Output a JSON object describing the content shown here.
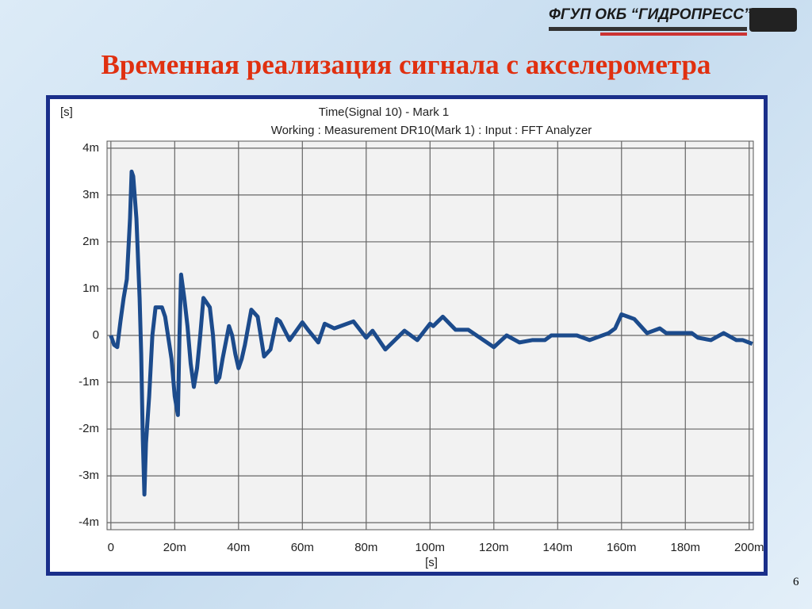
{
  "header": {
    "logo": "ФГУП ОКБ “ГИДРОПРЕСС”",
    "title": "Временная реализация сигнала с акселерометра"
  },
  "page_number": "6",
  "chart_data": {
    "type": "line",
    "title": "Time(Signal 10) - Mark 1",
    "subtitle": "Working : Measurement DR10(Mark 1) : Input : FFT Analyzer",
    "y_label": "[s]",
    "x_label": "[s]",
    "grid": true,
    "xlim": [
      -0.0012,
      0.2013
    ],
    "ylim": [
      -0.00415,
      0.00415
    ],
    "xticks": [
      0,
      {
        "value": 0.02,
        "label": "20m"
      },
      {
        "value": 0.04,
        "label": "40m"
      },
      {
        "value": 0.06,
        "label": "60m"
      },
      {
        "value": 0.08,
        "label": "80m"
      },
      {
        "value": 0.1,
        "label": "100m"
      },
      {
        "value": 0.12,
        "label": "120m"
      },
      {
        "value": 0.14,
        "label": "140m"
      },
      {
        "value": 0.16,
        "label": "160m"
      },
      {
        "value": 0.18,
        "label": "180m"
      },
      {
        "value": 0.2,
        "label": "200m"
      }
    ],
    "yticks": [
      {
        "value": 0.004,
        "label": "4m"
      },
      {
        "value": 0.003,
        "label": "3m"
      },
      {
        "value": 0.002,
        "label": "2m"
      },
      {
        "value": 0.001,
        "label": "1m"
      },
      0,
      {
        "value": -0.001,
        "label": "-1m"
      },
      {
        "value": -0.002,
        "label": "-2m"
      },
      {
        "value": -0.003,
        "label": "-3m"
      },
      {
        "value": -0.004,
        "label": "-4m"
      }
    ],
    "series": [
      {
        "color": "#1c4b8c",
        "x": [
          0,
          0.001,
          0.002,
          0.003,
          0.004,
          0.005,
          0.006,
          0.0065,
          0.007,
          0.008,
          0.009,
          0.0095,
          0.01,
          0.0105,
          0.011,
          0.012,
          0.013,
          0.014,
          0.016,
          0.017,
          0.019,
          0.02,
          0.021,
          0.0215,
          0.022,
          0.023,
          0.024,
          0.025,
          0.026,
          0.027,
          0.028,
          0.029,
          0.031,
          0.032,
          0.033,
          0.034,
          0.035,
          0.037,
          0.038,
          0.039,
          0.04,
          0.041,
          0.042,
          0.044,
          0.046,
          0.048,
          0.05,
          0.052,
          0.053,
          0.056,
          0.06,
          0.062,
          0.065,
          0.067,
          0.07,
          0.076,
          0.08,
          0.082,
          0.086,
          0.092,
          0.094,
          0.096,
          0.1,
          0.101,
          0.104,
          0.108,
          0.112,
          0.12,
          0.124,
          0.128,
          0.132,
          0.136,
          0.138,
          0.146,
          0.15,
          0.156,
          0.158,
          0.16,
          0.162,
          0.164,
          0.168,
          0.172,
          0.174,
          0.182,
          0.184,
          0.188,
          0.192,
          0.196,
          0.198,
          0.201
        ],
        "values": [
          0,
          -0.0002,
          -0.00025,
          0.0003,
          0.0008,
          0.0012,
          0.0025,
          0.0035,
          0.0034,
          0.0025,
          0.0008,
          -0.0004,
          -0.0022,
          -0.0034,
          -0.0023,
          -0.0013,
          0,
          0.0006,
          0.0006,
          0.0004,
          -0.0005,
          -0.0013,
          -0.0017,
          0,
          0.0013,
          0.0008,
          0.0002,
          -0.0006,
          -0.0011,
          -0.0007,
          0,
          0.0008,
          0.0006,
          0,
          -0.001,
          -0.0009,
          -0.0005,
          0.0002,
          0,
          -0.0004,
          -0.0007,
          -0.0005,
          -0.0002,
          0.00055,
          0.0004,
          -0.00045,
          -0.0003,
          0.00035,
          0.0003,
          -0.0001,
          0.00028,
          0.0001,
          -0.00015,
          0.00025,
          0.00015,
          0.0003,
          -5e-05,
          0.0001,
          -0.0003,
          0.0001,
          0,
          -0.0001,
          0.00025,
          0.0002,
          0.0004,
          0.00012,
          0.00012,
          -0.00025,
          0,
          -0.00015,
          -0.0001,
          -0.0001,
          0,
          0,
          -0.0001,
          5e-05,
          0.00015,
          0.00045,
          0.0004,
          0.00035,
          5e-05,
          0.00015,
          5e-05,
          5e-05,
          -5e-05,
          -0.0001,
          5e-05,
          -0.0001,
          -0.0001,
          -0.00018
        ]
      }
    ]
  }
}
